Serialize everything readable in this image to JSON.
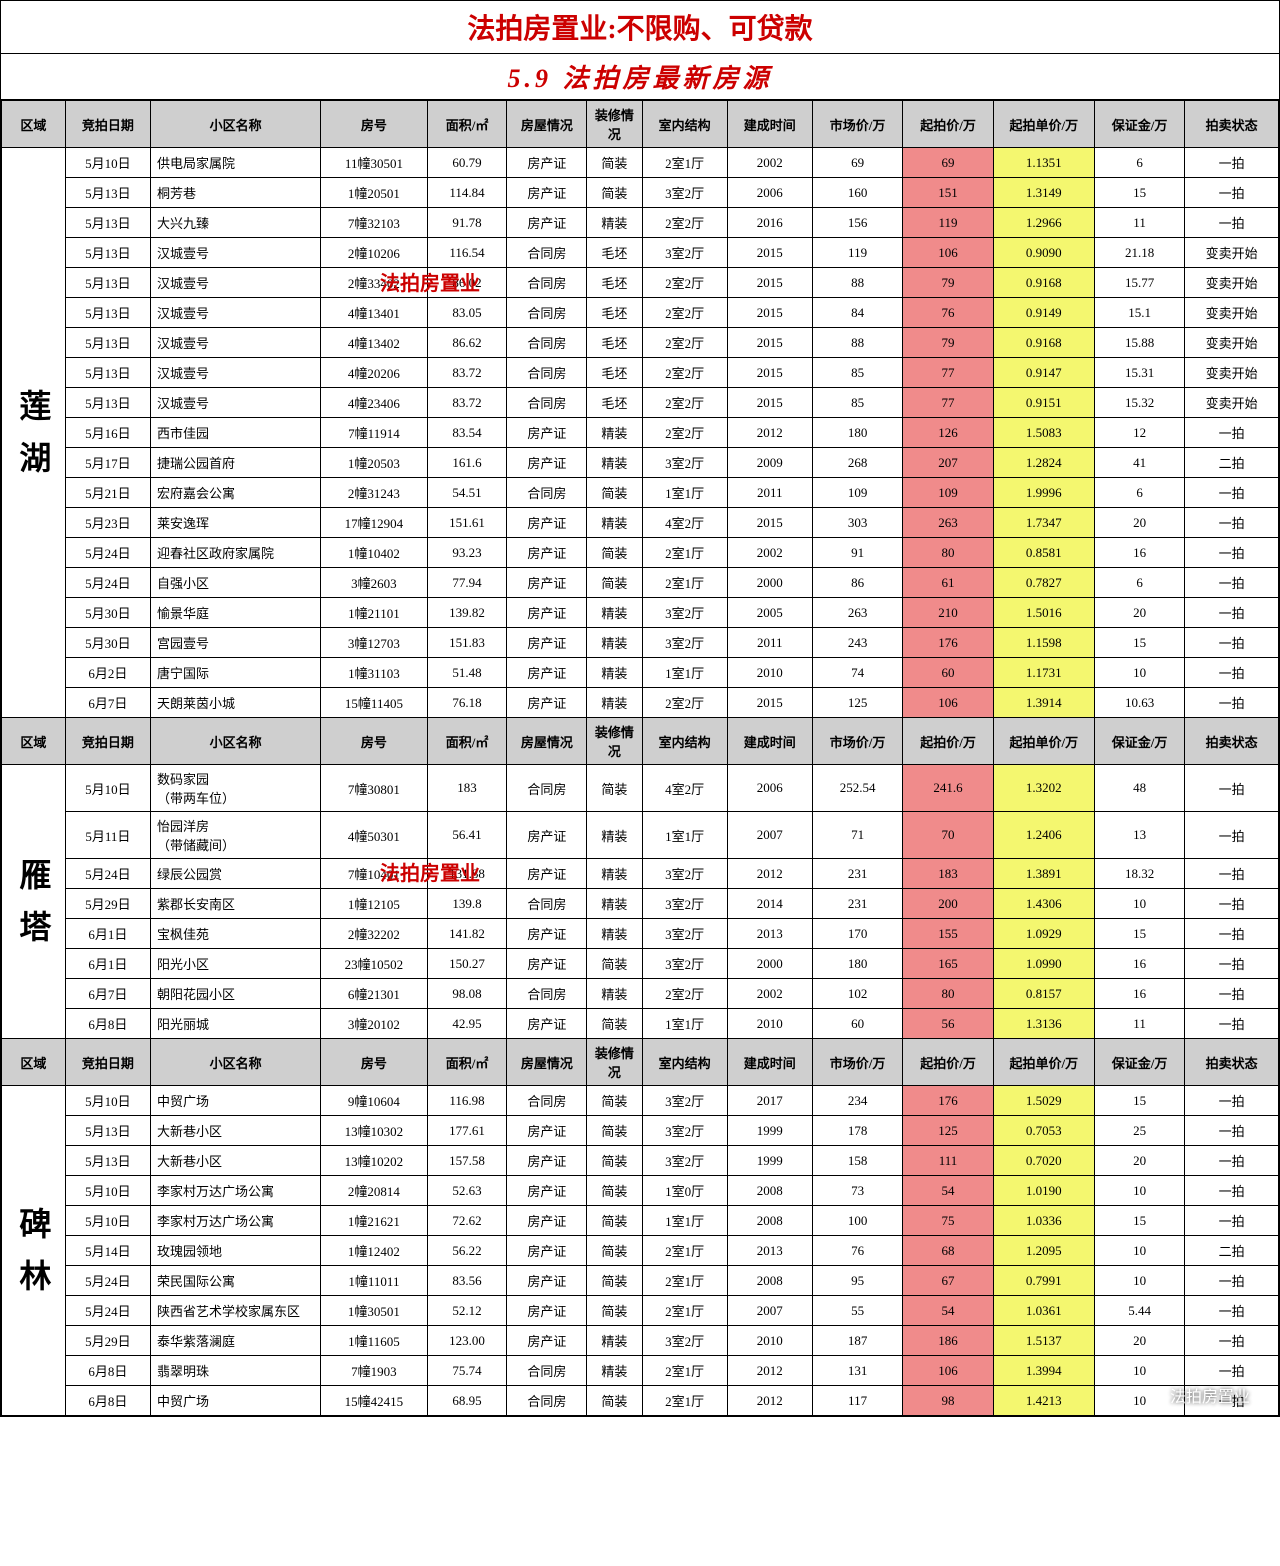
{
  "title1": "法拍房置业:不限购、可贷款",
  "title2": "5.9   法拍房最新房源",
  "watermark_text": "法拍房置业",
  "footer_mark": "法拍房置业",
  "colors": {
    "header_bg": "#cfcfcf",
    "highlight_red": "#f08b8b",
    "highlight_yellow": "#f4f76f",
    "title_color": "#c00"
  },
  "headers": [
    "区域",
    "竞拍日期",
    "小区名称",
    "房号",
    "面积/㎡",
    "房屋情况",
    "装修情况",
    "室内结构",
    "建成时间",
    "市场价/万",
    "起拍价/万",
    "起拍单价/万",
    "保证金/万",
    "拍卖状态"
  ],
  "sections": [
    {
      "region": "莲湖",
      "rows": [
        [
          "5月10日",
          "供电局家属院",
          "11幢30501",
          "60.79",
          "房产证",
          "简装",
          "2室1厅",
          "2002",
          "69",
          "69",
          "1.1351",
          "6",
          "一拍"
        ],
        [
          "5月13日",
          "桐芳巷",
          "1幢20501",
          "114.84",
          "房产证",
          "简装",
          "3室2厅",
          "2006",
          "160",
          "151",
          "1.3149",
          "15",
          "一拍"
        ],
        [
          "5月13日",
          "大兴九臻",
          "7幢32103",
          "91.78",
          "房产证",
          "精装",
          "2室2厅",
          "2016",
          "156",
          "119",
          "1.2966",
          "11",
          "一拍"
        ],
        [
          "5月13日",
          "汉城壹号",
          "2幢10206",
          "116.54",
          "合同房",
          "毛坯",
          "3室2厅",
          "2015",
          "119",
          "106",
          "0.9090",
          "21.18",
          "变卖开始"
        ],
        [
          "5月13日",
          "汉城壹号",
          "2幢33402",
          "86.02",
          "合同房",
          "毛坯",
          "2室2厅",
          "2015",
          "88",
          "79",
          "0.9168",
          "15.77",
          "变卖开始"
        ],
        [
          "5月13日",
          "汉城壹号",
          "4幢13401",
          "83.05",
          "合同房",
          "毛坯",
          "2室2厅",
          "2015",
          "84",
          "76",
          "0.9149",
          "15.1",
          "变卖开始"
        ],
        [
          "5月13日",
          "汉城壹号",
          "4幢13402",
          "86.62",
          "合同房",
          "毛坯",
          "2室2厅",
          "2015",
          "88",
          "79",
          "0.9168",
          "15.88",
          "变卖开始"
        ],
        [
          "5月13日",
          "汉城壹号",
          "4幢20206",
          "83.72",
          "合同房",
          "毛坯",
          "2室2厅",
          "2015",
          "85",
          "77",
          "0.9147",
          "15.31",
          "变卖开始"
        ],
        [
          "5月13日",
          "汉城壹号",
          "4幢23406",
          "83.72",
          "合同房",
          "毛坯",
          "2室2厅",
          "2015",
          "85",
          "77",
          "0.9151",
          "15.32",
          "变卖开始"
        ],
        [
          "5月16日",
          "西市佳园",
          "7幢11914",
          "83.54",
          "房产证",
          "精装",
          "2室2厅",
          "2012",
          "180",
          "126",
          "1.5083",
          "12",
          "一拍"
        ],
        [
          "5月17日",
          "捷瑞公园首府",
          "1幢20503",
          "161.6",
          "房产证",
          "精装",
          "3室2厅",
          "2009",
          "268",
          "207",
          "1.2824",
          "41",
          "二拍"
        ],
        [
          "5月21日",
          "宏府嘉会公寓",
          "2幢31243",
          "54.51",
          "合同房",
          "简装",
          "1室1厅",
          "2011",
          "109",
          "109",
          "1.9996",
          "6",
          "一拍"
        ],
        [
          "5月23日",
          "莱安逸珲",
          "17幢12904",
          "151.61",
          "房产证",
          "精装",
          "4室2厅",
          "2015",
          "303",
          "263",
          "1.7347",
          "20",
          "一拍"
        ],
        [
          "5月24日",
          "迎春社区政府家属院",
          "1幢10402",
          "93.23",
          "房产证",
          "简装",
          "2室1厅",
          "2002",
          "91",
          "80",
          "0.8581",
          "16",
          "一拍"
        ],
        [
          "5月24日",
          "自强小区",
          "3幢2603",
          "77.94",
          "房产证",
          "简装",
          "2室1厅",
          "2000",
          "86",
          "61",
          "0.7827",
          "6",
          "一拍"
        ],
        [
          "5月30日",
          "愉景华庭",
          "1幢21101",
          "139.82",
          "房产证",
          "精装",
          "3室2厅",
          "2005",
          "263",
          "210",
          "1.5016",
          "20",
          "一拍"
        ],
        [
          "5月30日",
          "宫园壹号",
          "3幢12703",
          "151.83",
          "房产证",
          "精装",
          "3室2厅",
          "2011",
          "243",
          "176",
          "1.1598",
          "15",
          "一拍"
        ],
        [
          "6月2日",
          "唐宁国际",
          "1幢31103",
          "51.48",
          "房产证",
          "精装",
          "1室1厅",
          "2010",
          "74",
          "60",
          "1.1731",
          "10",
          "一拍"
        ],
        [
          "6月7日",
          "天朗莱茵小城",
          "15幢11405",
          "76.18",
          "房产证",
          "精装",
          "2室2厅",
          "2015",
          "125",
          "106",
          "1.3914",
          "10.63",
          "一拍"
        ]
      ]
    },
    {
      "region": "雁塔",
      "rows": [
        [
          "5月10日",
          "数码家园\n（带两车位）",
          "7幢30801",
          "183",
          "合同房",
          "简装",
          "4室2厅",
          "2006",
          "252.54",
          "241.6",
          "1.3202",
          "48",
          "一拍"
        ],
        [
          "5月11日",
          "怡园洋房\n（带储藏间）",
          "4幢50301",
          "56.41",
          "房产证",
          "精装",
          "1室1厅",
          "2007",
          "71",
          "70",
          "1.2406",
          "13",
          "一拍"
        ],
        [
          "5月24日",
          "绿辰公园赏",
          "7幢10401",
          "131.88",
          "房产证",
          "精装",
          "3室2厅",
          "2012",
          "231",
          "183",
          "1.3891",
          "18.32",
          "一拍"
        ],
        [
          "5月29日",
          "紫郡长安南区",
          "1幢12105",
          "139.8",
          "合同房",
          "精装",
          "3室2厅",
          "2014",
          "231",
          "200",
          "1.4306",
          "10",
          "一拍"
        ],
        [
          "6月1日",
          "宝枫佳苑",
          "2幢32202",
          "141.82",
          "房产证",
          "精装",
          "3室2厅",
          "2013",
          "170",
          "155",
          "1.0929",
          "15",
          "一拍"
        ],
        [
          "6月1日",
          "阳光小区",
          "23幢10502",
          "150.27",
          "房产证",
          "简装",
          "3室2厅",
          "2000",
          "180",
          "165",
          "1.0990",
          "16",
          "一拍"
        ],
        [
          "6月7日",
          "朝阳花园小区",
          "6幢21301",
          "98.08",
          "合同房",
          "精装",
          "2室2厅",
          "2002",
          "102",
          "80",
          "0.8157",
          "16",
          "一拍"
        ],
        [
          "6月8日",
          "阳光丽城",
          "3幢20102",
          "42.95",
          "房产证",
          "简装",
          "1室1厅",
          "2010",
          "60",
          "56",
          "1.3136",
          "11",
          "一拍"
        ]
      ]
    },
    {
      "region": "碑林",
      "rows": [
        [
          "5月10日",
          "中贸广场",
          "9幢10604",
          "116.98",
          "合同房",
          "简装",
          "3室2厅",
          "2017",
          "234",
          "176",
          "1.5029",
          "15",
          "一拍"
        ],
        [
          "5月13日",
          "大新巷小区",
          "13幢10302",
          "177.61",
          "房产证",
          "简装",
          "3室2厅",
          "1999",
          "178",
          "125",
          "0.7053",
          "25",
          "一拍"
        ],
        [
          "5月13日",
          "大新巷小区",
          "13幢10202",
          "157.58",
          "房产证",
          "简装",
          "3室2厅",
          "1999",
          "158",
          "111",
          "0.7020",
          "20",
          "一拍"
        ],
        [
          "5月10日",
          "李家村万达广场公寓",
          "2幢20814",
          "52.63",
          "房产证",
          "简装",
          "1室0厅",
          "2008",
          "73",
          "54",
          "1.0190",
          "10",
          "一拍"
        ],
        [
          "5月10日",
          "李家村万达广场公寓",
          "1幢21621",
          "72.62",
          "房产证",
          "简装",
          "1室1厅",
          "2008",
          "100",
          "75",
          "1.0336",
          "15",
          "一拍"
        ],
        [
          "5月14日",
          "玫瑰园领地",
          "1幢12402",
          "56.22",
          "房产证",
          "简装",
          "2室1厅",
          "2013",
          "76",
          "68",
          "1.2095",
          "10",
          "二拍"
        ],
        [
          "5月24日",
          "荣民国际公寓",
          "1幢11011",
          "83.56",
          "房产证",
          "简装",
          "2室1厅",
          "2008",
          "95",
          "67",
          "0.7991",
          "10",
          "一拍"
        ],
        [
          "5月24日",
          "陕西省艺术学校家属东区",
          "1幢30501",
          "52.12",
          "房产证",
          "简装",
          "2室1厅",
          "2007",
          "55",
          "54",
          "1.0361",
          "5.44",
          "一拍"
        ],
        [
          "5月29日",
          "泰华紫落澜庭",
          "1幢11605",
          "123.00",
          "房产证",
          "精装",
          "3室2厅",
          "2010",
          "187",
          "186",
          "1.5137",
          "20",
          "一拍"
        ],
        [
          "6月8日",
          "翡翠明珠",
          "7幢1903",
          "75.74",
          "合同房",
          "精装",
          "2室1厅",
          "2012",
          "131",
          "106",
          "1.3994",
          "10",
          "一拍"
        ],
        [
          "6月8日",
          "中贸广场",
          "15幢42415",
          "68.95",
          "合同房",
          "简装",
          "2室1厅",
          "2012",
          "117",
          "98",
          "1.4213",
          "10",
          "一拍"
        ]
      ]
    }
  ]
}
